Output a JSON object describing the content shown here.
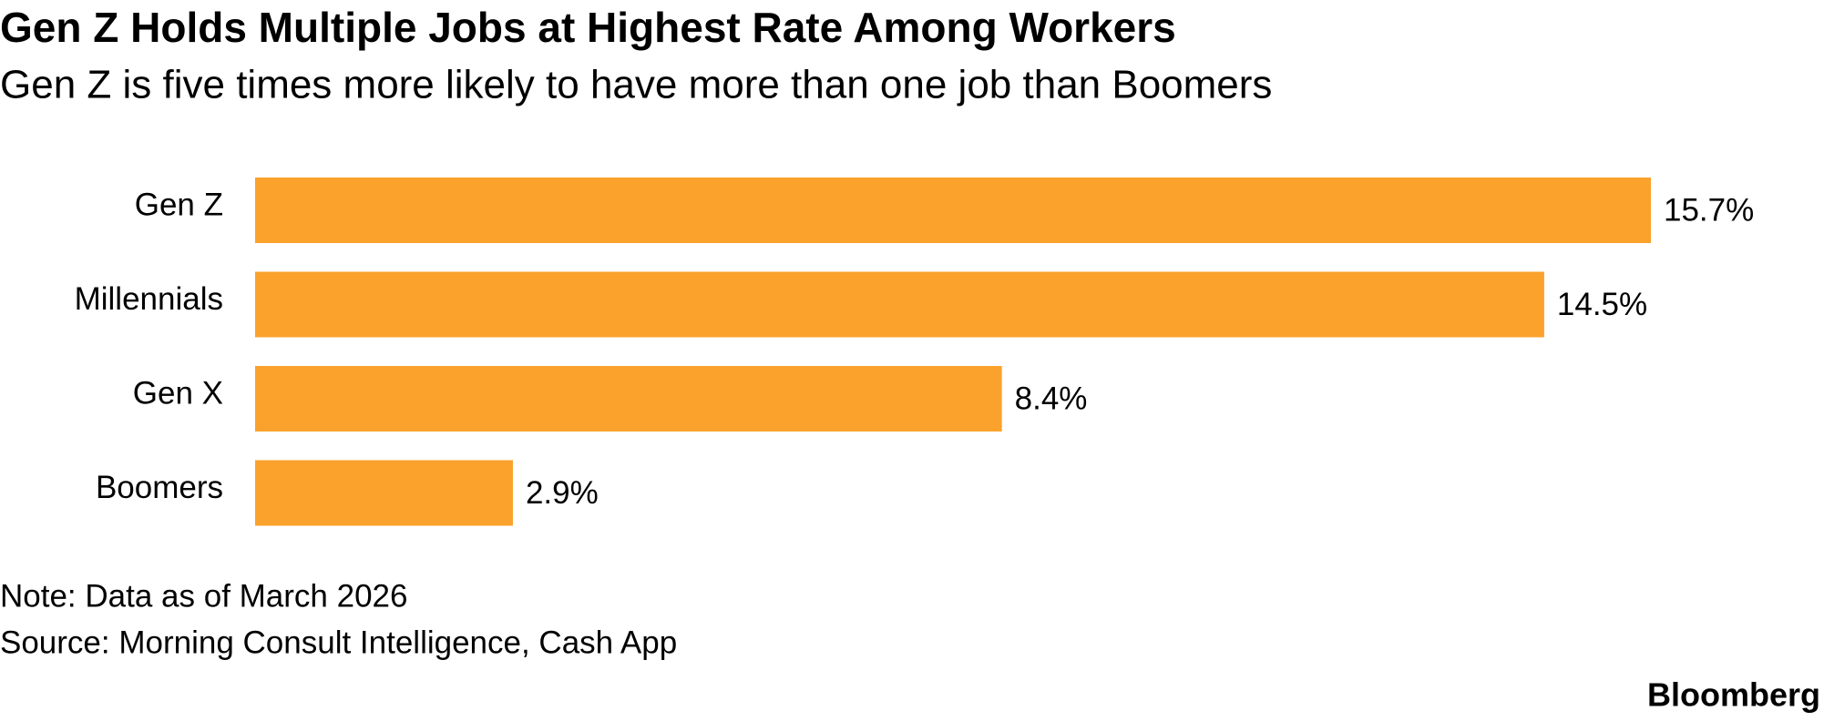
{
  "chart_data": {
    "type": "bar",
    "orientation": "horizontal",
    "title": "Gen Z Holds Multiple Jobs at Highest Rate Among Workers",
    "subtitle": "Gen Z is five times more likely to have more than one job than Boomers",
    "categories": [
      "Gen Z",
      "Millennials",
      "Gen X",
      "Boomers"
    ],
    "values": [
      15.7,
      14.5,
      8.4,
      2.9
    ],
    "value_labels": [
      "15.7%",
      "14.5%",
      "8.4%",
      "2.9%"
    ],
    "color": "#fba22d",
    "note": "Note: Data as of March 2026",
    "source": "Source: Morning Consult Intelligence, Cash App",
    "credit": "Bloomberg"
  }
}
